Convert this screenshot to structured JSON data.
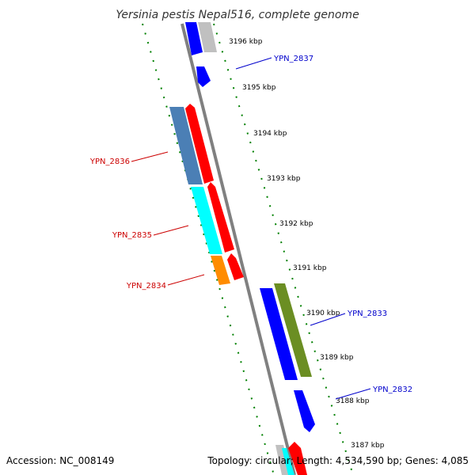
{
  "title": "Yersinia pestis Nepal516, complete genome",
  "footer": {
    "accession": "Accession: NC_008149",
    "topology": "Topology: circular; Length: 4,534,590 bp; Genes: 4,085"
  },
  "ticks": [
    "3196 kbp",
    "3195 kbp",
    "3194 kbp",
    "3193 kbp",
    "3192 kbp",
    "3191 kbp",
    "3190 kbp",
    "3189 kbp",
    "3188 kbp",
    "3187 kbp"
  ],
  "genes_forward_labels": [
    "YPN_2837",
    "YPN_2833",
    "YPN_2832"
  ],
  "genes_reverse_labels": [
    "YPN_2836",
    "YPN_2835",
    "YPN_2834"
  ],
  "colors": {
    "backbone": "#808080",
    "tick": "#008000",
    "forward_label": "#0000cc",
    "reverse_label": "#cc0000",
    "blue": "#0000ff",
    "red": "#ff0000",
    "steelblue": "#4b7fb5",
    "cyan": "#00ffff",
    "orange": "#ff8c00",
    "olive": "#6b8e23",
    "gray": "#c0c0c0"
  }
}
